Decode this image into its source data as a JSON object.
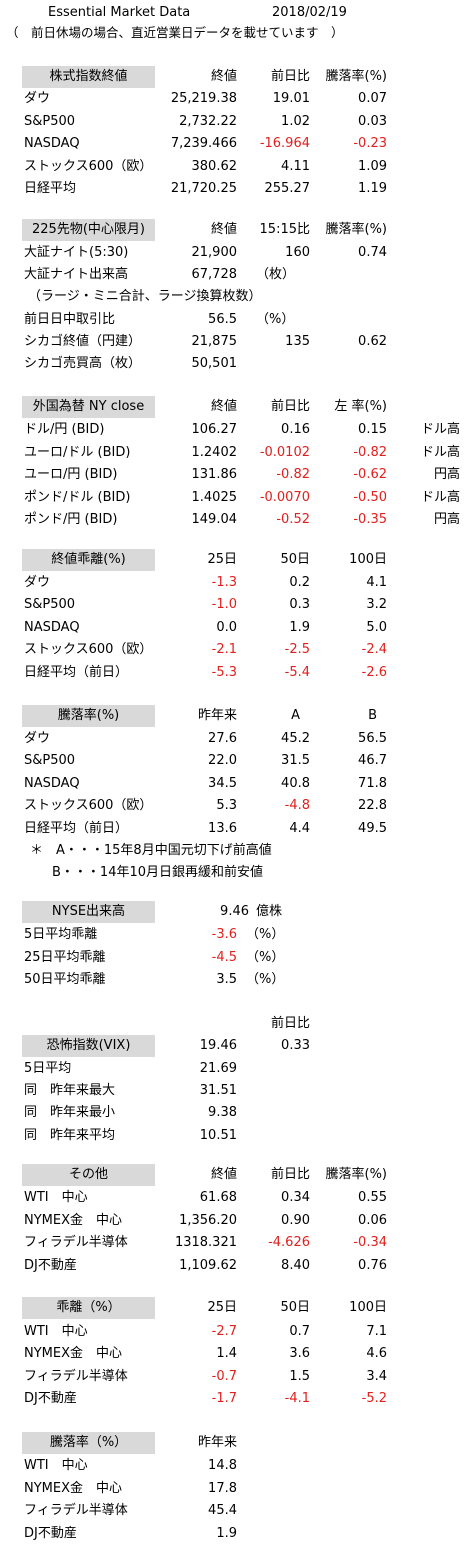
{
  "header": {
    "title": "Essential Market Data",
    "date": "2018/02/19",
    "note": "（　前日休場の場合、直近営業日データを載せています　）"
  },
  "sections": [
    {
      "id": "indices",
      "header_label": "株式指数終値",
      "columns": [
        "終値",
        "前日比",
        "騰落率(%)"
      ],
      "rows": [
        {
          "label": "ダウ",
          "cells": [
            "25,219.38",
            "19.01",
            "0.07"
          ]
        },
        {
          "label": "S&P500",
          "cells": [
            "2,732.22",
            "1.02",
            "0.03"
          ]
        },
        {
          "label": "NASDAQ",
          "cells": [
            "7,239.466",
            "-16.964",
            "-0.23"
          ]
        },
        {
          "label": "ストックス600（欧）",
          "cells": [
            "380.62",
            "4.11",
            "1.09"
          ]
        },
        {
          "label": "日経平均",
          "cells": [
            "21,720.25",
            "255.27",
            "1.19"
          ]
        }
      ]
    },
    {
      "id": "futures",
      "header_label": "225先物(中心限月)",
      "columns": [
        "終値",
        "15:15比",
        "騰落率(%)"
      ],
      "rows": [
        {
          "label": "大証ナイト(5:30)",
          "cells": [
            "21,900",
            "160",
            "0.74"
          ]
        },
        {
          "label": "大証ナイト出来高",
          "cells": [
            "67,728",
            "（枚）",
            ""
          ]
        },
        {
          "label": "（ラージ・ミニ合計、ラージ換算枚数）",
          "cells": [
            "",
            "",
            ""
          ]
        },
        {
          "label": "前日日中取引比",
          "cells": [
            "56.5",
            "（%）",
            ""
          ]
        },
        {
          "label": "シカゴ終値（円建）",
          "cells": [
            "21,875",
            "135",
            "0.62"
          ]
        },
        {
          "label": "シカゴ売買高（枚）",
          "cells": [
            "50,501",
            "",
            ""
          ]
        }
      ]
    },
    {
      "id": "fx",
      "header_label": "外国為替 NY close",
      "columns": [
        "終値",
        "前日比",
        "左 率(%)"
      ],
      "rows": [
        {
          "label": "ドル/円 (BID)",
          "cells": [
            "106.27",
            "0.16",
            "0.15",
            "ドル高"
          ]
        },
        {
          "label": "ユーロ/ドル (BID)",
          "cells": [
            "1.2402",
            "-0.0102",
            "-0.82",
            "ドル高"
          ]
        },
        {
          "label": "ユーロ/円 (BID)",
          "cells": [
            "131.86",
            "-0.82",
            "-0.62",
            "円高"
          ]
        },
        {
          "label": "ポンド/ドル (BID)",
          "cells": [
            "1.4025",
            "-0.0070",
            "-0.50",
            "ドル高"
          ]
        },
        {
          "label": "ポンド/円 (BID)",
          "cells": [
            "149.04",
            "-0.52",
            "-0.35",
            "円高"
          ]
        }
      ]
    },
    {
      "id": "deviation",
      "header_label": "終値乖離(%)",
      "columns": [
        "25日",
        "50日",
        "100日"
      ],
      "rows": [
        {
          "label": "ダウ",
          "cells": [
            "-1.3",
            "0.2",
            "4.1"
          ]
        },
        {
          "label": "S&P500",
          "cells": [
            "-1.0",
            "0.3",
            "3.2"
          ]
        },
        {
          "label": "NASDAQ",
          "cells": [
            "0.0",
            "1.9",
            "5.0"
          ]
        },
        {
          "label": "ストックス600（欧）",
          "cells": [
            "-2.1",
            "-2.5",
            "-2.4"
          ]
        },
        {
          "label": "日経平均（前日）",
          "cells": [
            "-5.3",
            "-5.4",
            "-2.6"
          ]
        }
      ]
    },
    {
      "id": "change",
      "header_label": "騰落率(%)",
      "columns": [
        "昨年来",
        "A",
        "B"
      ],
      "rows": [
        {
          "label": "ダウ",
          "cells": [
            "27.6",
            "45.2",
            "56.5"
          ]
        },
        {
          "label": "S&P500",
          "cells": [
            "22.0",
            "31.5",
            "46.7"
          ]
        },
        {
          "label": "NASDAQ",
          "cells": [
            "34.5",
            "40.8",
            "71.8"
          ]
        },
        {
          "label": "ストックス600（欧）",
          "cells": [
            "5.3",
            "-4.8",
            "22.8"
          ]
        },
        {
          "label": "日経平均（前日）",
          "cells": [
            "13.6",
            "4.4",
            "49.5"
          ]
        }
      ],
      "notes": [
        "＊　A・・・15年8月中国元切下げ前高値",
        "B・・・14年10月日銀再緩和前安値"
      ]
    },
    {
      "id": "nyse",
      "header_label": "NYSE出来高",
      "header_value": "9.46",
      "header_unit": "億株",
      "rows": [
        {
          "label": "5日平均乖離",
          "cells": [
            "-3.6",
            "（%）"
          ]
        },
        {
          "label": "25日平均乖離",
          "cells": [
            "-4.5",
            "（%）"
          ]
        },
        {
          "label": "50日平均乖離",
          "cells": [
            "3.5",
            "（%）"
          ]
        }
      ]
    },
    {
      "id": "vix",
      "header_label": "恐怖指数(VIX)",
      "column_above": "前日比",
      "header_value": "19.46",
      "header_change": "0.33",
      "rows": [
        {
          "label": "5日平均",
          "cells": [
            "21.69"
          ]
        },
        {
          "label": "同　昨年来最大",
          "cells": [
            "31.51"
          ]
        },
        {
          "label": "同　昨年来最小",
          "cells": [
            "9.38"
          ]
        },
        {
          "label": "同　昨年来平均",
          "cells": [
            "10.51"
          ]
        }
      ]
    },
    {
      "id": "others",
      "header_label": "その他",
      "columns": [
        "終値",
        "前日比",
        "騰落率(%)"
      ],
      "rows": [
        {
          "label": "WTI　中心",
          "cells": [
            "61.68",
            "0.34",
            "0.55"
          ]
        },
        {
          "label": "NYMEX金　中心",
          "cells": [
            "1,356.20",
            "0.90",
            "0.06"
          ]
        },
        {
          "label": "フィラデル半導体",
          "cells": [
            "1318.321",
            "-4.626",
            "-0.34"
          ]
        },
        {
          "label": "DJ不動産",
          "cells": [
            "1,109.62",
            "8.40",
            "0.76"
          ]
        }
      ]
    },
    {
      "id": "others_dev",
      "header_label": "乖離（%）",
      "columns": [
        "25日",
        "50日",
        "100日"
      ],
      "rows": [
        {
          "label": "WTI　中心",
          "cells": [
            "-2.7",
            "0.7",
            "7.1"
          ]
        },
        {
          "label": "NYMEX金　中心",
          "cells": [
            "1.4",
            "3.6",
            "4.6"
          ]
        },
        {
          "label": "フィラデル半導体",
          "cells": [
            "-0.7",
            "1.5",
            "3.4"
          ]
        },
        {
          "label": "DJ不動産",
          "cells": [
            "-1.7",
            "-4.1",
            "-5.2"
          ]
        }
      ]
    },
    {
      "id": "others_change",
      "header_label": "騰落率（%）",
      "columns": [
        "昨年来"
      ],
      "rows": [
        {
          "label": "WTI　中心",
          "cells": [
            "14.8"
          ]
        },
        {
          "label": "NYMEX金　中心",
          "cells": [
            "17.8"
          ]
        },
        {
          "label": "フィラデル半導体",
          "cells": [
            "45.4"
          ]
        },
        {
          "label": "DJ不動産",
          "cells": [
            "1.9"
          ]
        }
      ]
    }
  ],
  "colors": {
    "negative": "#e0201e",
    "header_fill": "#d9d9d9",
    "text": "#000000"
  }
}
